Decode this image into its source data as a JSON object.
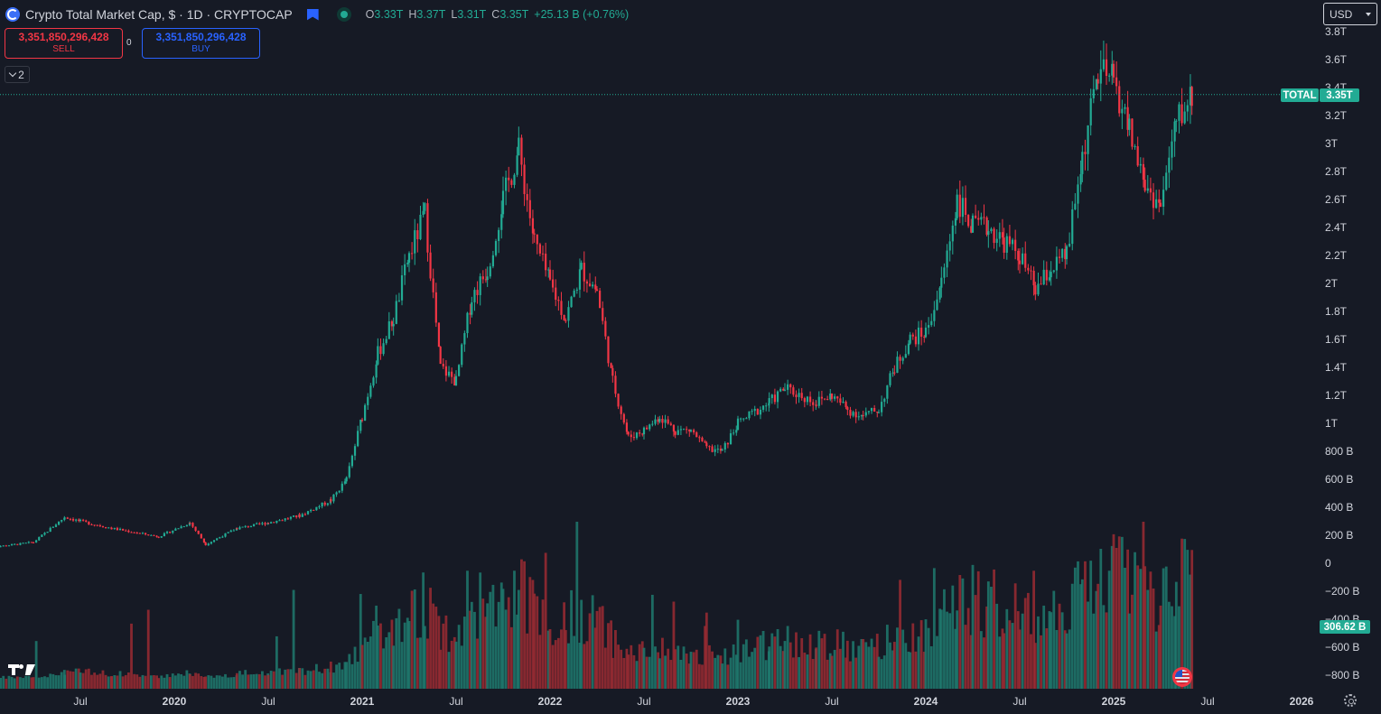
{
  "header": {
    "symbol_title": "Crypto Total Market Cap, $ · 1D · CRYPTOCAP",
    "ohlc": [
      {
        "k": "O",
        "v": "3.33T"
      },
      {
        "k": "H",
        "v": "3.37T"
      },
      {
        "k": "L",
        "v": "3.31T"
      },
      {
        "k": "C",
        "v": "3.35T"
      }
    ],
    "change": "+25.13 B (+0.76%)"
  },
  "trade": {
    "sell_price": "3,351,850,296,428",
    "sell_label": "SELL",
    "spread": "0",
    "buy_price": "3,351,850,296,428",
    "buy_label": "BUY"
  },
  "indicators_toggle": {
    "count": "2"
  },
  "currency": {
    "value": "USD"
  },
  "price_tags": {
    "series_label": "TOTAL",
    "last_price": "3.35T",
    "volume_value": "306.62 B"
  },
  "colors": {
    "background": "#161a25",
    "up": "#22ab94",
    "down": "#f23645",
    "up_volume": "#1e7a6e",
    "down_volume": "#9b2c33",
    "text": "#d1d4dc",
    "grid_line": "#363a45"
  },
  "icons": {
    "symbol": "crypto-coin-icon",
    "flag": "bookmark-flag-icon",
    "market_status": "market-open-dot-icon",
    "logo": "tradingview-logo-icon",
    "event": "us-flag-event-icon",
    "settings": "gear-icon"
  },
  "chart_data": {
    "type": "candlestick",
    "title": "Crypto Total Market Cap, $ · 1D · CRYPTOCAP",
    "x_tick_labels": [
      "Jul",
      "2020",
      "Jul",
      "2021",
      "Jul",
      "2022",
      "Jul",
      "2023",
      "Jul",
      "2024",
      "Jul",
      "2025",
      "Jul",
      "2026"
    ],
    "x_ticks": [
      "2019-07",
      "2020-01",
      "2020-07",
      "2021-01",
      "2021-07",
      "2022-01",
      "2022-07",
      "2023-01",
      "2023-07",
      "2024-01",
      "2024-07",
      "2025-01",
      "2025-07",
      "2026-01"
    ],
    "y_tick_labels": [
      "3.8T",
      "3.6T",
      "3.4T",
      "3.2T",
      "3T",
      "2.8T",
      "2.6T",
      "2.4T",
      "2.2T",
      "2T",
      "1.8T",
      "1.6T",
      "1.4T",
      "1.2T",
      "1T",
      "800 B",
      "600 B",
      "400 B",
      "200 B",
      "0",
      "−200 B",
      "−400 B",
      "−600 B",
      "−800 B"
    ],
    "y_unit": "USD",
    "ylim": [
      -880,
      3850
    ],
    "last_close": 3350,
    "series": [
      {
        "kind": "price",
        "values_billion_usd": [
          [
            "2019-01",
            110
          ],
          [
            "2019-04",
            150
          ],
          [
            "2019-06",
            330
          ],
          [
            "2019-07",
            300
          ],
          [
            "2019-09",
            250
          ],
          [
            "2019-12",
            190
          ],
          [
            "2020-02",
            290
          ],
          [
            "2020-03",
            135
          ],
          [
            "2020-05",
            250
          ],
          [
            "2020-07",
            290
          ],
          [
            "2020-09",
            340
          ],
          [
            "2020-11",
            450
          ],
          [
            "2020-12",
            600
          ],
          [
            "2021-01",
            1050
          ],
          [
            "2021-02",
            1500
          ],
          [
            "2021-03",
            1750
          ],
          [
            "2021-04",
            2200
          ],
          [
            "2021-05",
            2500
          ],
          [
            "2021-06",
            1400
          ],
          [
            "2021-07",
            1300
          ],
          [
            "2021-08",
            1900
          ],
          [
            "2021-09",
            2100
          ],
          [
            "2021-10",
            2600
          ],
          [
            "2021-11",
            2950
          ],
          [
            "2021-12",
            2300
          ],
          [
            "2022-01",
            2000
          ],
          [
            "2022-02",
            1750
          ],
          [
            "2022-03",
            2100
          ],
          [
            "2022-04",
            1950
          ],
          [
            "2022-05",
            1300
          ],
          [
            "2022-06",
            900
          ],
          [
            "2022-07",
            950
          ],
          [
            "2022-08",
            1050
          ],
          [
            "2022-09",
            950
          ],
          [
            "2022-10",
            950
          ],
          [
            "2022-11",
            820
          ],
          [
            "2022-12",
            800
          ],
          [
            "2023-01",
            1000
          ],
          [
            "2023-03",
            1150
          ],
          [
            "2023-04",
            1250
          ],
          [
            "2023-06",
            1150
          ],
          [
            "2023-07",
            1200
          ],
          [
            "2023-08",
            1100
          ],
          [
            "2023-09",
            1050
          ],
          [
            "2023-10",
            1100
          ],
          [
            "2023-11",
            1400
          ],
          [
            "2023-12",
            1600
          ],
          [
            "2024-01",
            1650
          ],
          [
            "2024-02",
            2000
          ],
          [
            "2024-03",
            2600
          ],
          [
            "2024-04",
            2400
          ],
          [
            "2024-05",
            2400
          ],
          [
            "2024-06",
            2300
          ],
          [
            "2024-07",
            2200
          ],
          [
            "2024-08",
            1950
          ],
          [
            "2024-09",
            2100
          ],
          [
            "2024-10",
            2200
          ],
          [
            "2024-11",
            2900
          ],
          [
            "2024-12",
            3500
          ],
          [
            "2025-01",
            3450
          ],
          [
            "2025-02",
            3100
          ],
          [
            "2025-03",
            2700
          ],
          [
            "2025-04",
            2550
          ],
          [
            "2025-05",
            3150
          ],
          [
            "2025-06",
            3350
          ]
        ]
      },
      {
        "kind": "volume",
        "last_value": "306.62 B"
      }
    ],
    "grid": false,
    "legend": "top-left"
  }
}
